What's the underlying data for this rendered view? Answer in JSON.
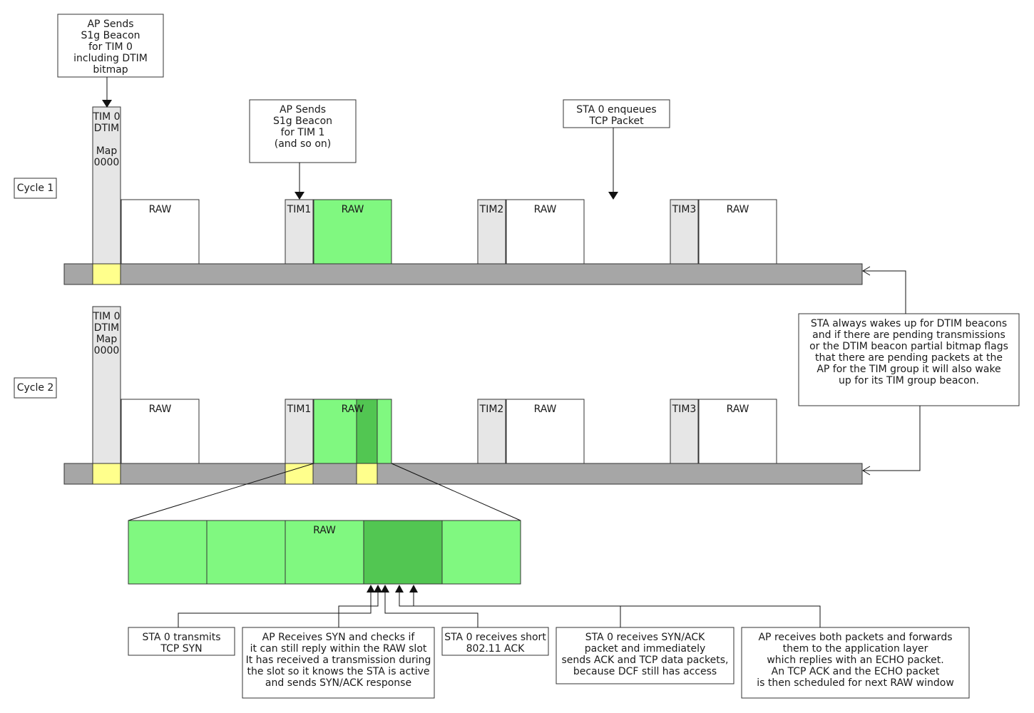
{
  "diagram": {
    "cycle_labels": [
      "Cycle 1",
      "Cycle 2"
    ],
    "tim0_cycle1": [
      "TIM 0",
      "DTIM",
      "",
      "Map",
      "0000"
    ],
    "tim0_cycle2": [
      "TIM 0",
      "DTIM",
      "Map",
      "0000"
    ],
    "tim_labels": [
      "TIM1",
      "TIM2",
      "TIM3"
    ],
    "raw_label": "RAW",
    "callouts": {
      "ap_beacon_tim0": [
        "AP Sends",
        "S1g Beacon",
        "for TIM 0",
        "including DTIM",
        "bitmap"
      ],
      "ap_beacon_tim1": [
        "AP Sends",
        "S1g Beacon",
        "for TIM 1",
        "(and so on)"
      ],
      "sta_enqueues": [
        "STA 0 enqueues",
        "TCP Packet"
      ],
      "sta_wakes": [
        "STA always wakes up for DTIM beacons",
        "and if there are pending transmissions",
        "or the DTIM beacon partial bitmap flags",
        "that there are pending packets at the",
        "AP for the TIM group it will also wake",
        "up for its TIM group beacon."
      ],
      "sta_syn": [
        "STA 0 transmits",
        "TCP SYN"
      ],
      "ap_syn": [
        "AP Receives SYN and  checks if",
        "it can still reply within the RAW slot",
        "It has received a transmission during",
        "the slot so it knows the STA is active",
        "and sends SYN/ACK response"
      ],
      "sta_ack": [
        "STA 0 receives short",
        "802.11 ACK"
      ],
      "sta_synack": [
        "STA 0 receives SYN/ACK",
        "packet and  immediately",
        "sends ACK and TCP data packets,",
        "because DCF still has access"
      ],
      "ap_both": [
        "AP receives both packets and forwards",
        "them to the application layer",
        "which replies with an ECHO packet.",
        "An TCP ACK and the ECHO packet",
        "is then scheduled for next RAW window"
      ]
    },
    "colors": {
      "raw_active": "#80f880",
      "raw_slot_active": "#52c652",
      "beacon_slot": "#ffff8c",
      "tim_block": "#e6e6e6",
      "timeline": "#a6a6a6"
    }
  }
}
